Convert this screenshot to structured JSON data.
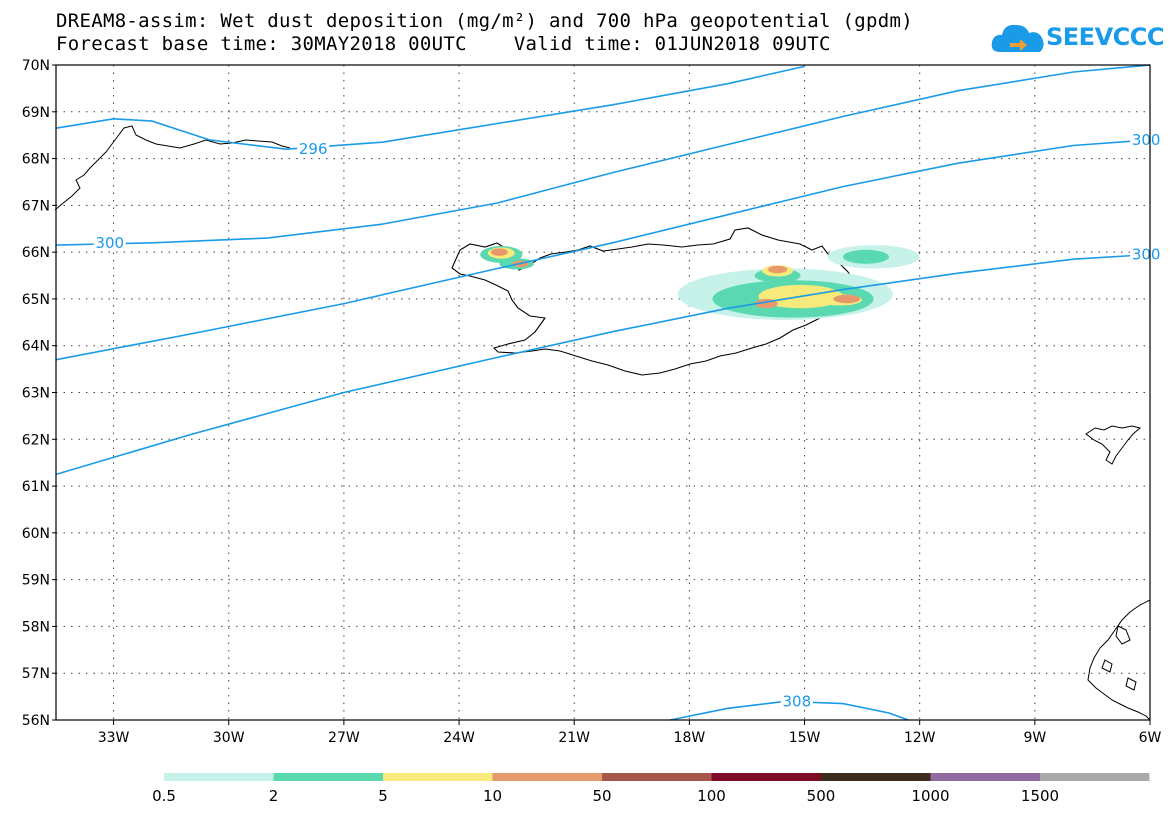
{
  "title_line1": "DREAM8-assim: Wet dust deposition (mg/m²) and 700 hPa geopotential (gpdm)",
  "title_line2": "Forecast base time: 30MAY2018 00UTC    Valid time: 01JUN2018 09UTC",
  "logo_text": "SEEVCCC",
  "map": {
    "lon_range": [
      -34.5,
      -6
    ],
    "lat_range": [
      56,
      70
    ],
    "lon_ticks": [
      {
        "value": -33,
        "label": "33W"
      },
      {
        "value": -30,
        "label": "30W"
      },
      {
        "value": -27,
        "label": "27W"
      },
      {
        "value": -24,
        "label": "24W"
      },
      {
        "value": -21,
        "label": "21W"
      },
      {
        "value": -18,
        "label": "18W"
      },
      {
        "value": -15,
        "label": "15W"
      },
      {
        "value": -12,
        "label": "12W"
      },
      {
        "value": -9,
        "label": "9W"
      },
      {
        "value": -6,
        "label": "6W"
      }
    ],
    "lat_ticks": [
      {
        "value": 70,
        "label": "70N"
      },
      {
        "value": 69,
        "label": "69N"
      },
      {
        "value": 68,
        "label": "68N"
      },
      {
        "value": 67,
        "label": "67N"
      },
      {
        "value": 66,
        "label": "66N"
      },
      {
        "value": 65,
        "label": "65N"
      },
      {
        "value": 64,
        "label": "64N"
      },
      {
        "value": 63,
        "label": "63N"
      },
      {
        "value": 62,
        "label": "62N"
      },
      {
        "value": 61,
        "label": "61N"
      },
      {
        "value": 60,
        "label": "60N"
      },
      {
        "value": 59,
        "label": "59N"
      },
      {
        "value": 58,
        "label": "58N"
      },
      {
        "value": 57,
        "label": "57N"
      },
      {
        "value": 56,
        "label": "56N"
      }
    ],
    "contour_color": "#1a9be8",
    "contours": [
      {
        "label": "296",
        "label_at": [
          -27.8,
          68.2
        ],
        "points": [
          [
            -34.5,
            68.65
          ],
          [
            -33,
            68.85
          ],
          [
            -32,
            68.8
          ],
          [
            -30.5,
            68.4
          ],
          [
            -28.5,
            68.2
          ],
          [
            -26,
            68.35
          ],
          [
            -23,
            68.75
          ],
          [
            -20,
            69.15
          ],
          [
            -17,
            69.6
          ],
          [
            -15,
            69.97
          ]
        ]
      },
      {
        "label": "300",
        "label_at": [
          -33.1,
          66.2
        ],
        "points": [
          [
            -34.5,
            66.15
          ],
          [
            -32,
            66.2
          ],
          [
            -29,
            66.3
          ],
          [
            -26,
            66.6
          ],
          [
            -23,
            67.05
          ],
          [
            -20,
            67.7
          ],
          [
            -17,
            68.3
          ],
          [
            -14,
            68.9
          ],
          [
            -11,
            69.45
          ],
          [
            -8,
            69.85
          ],
          [
            -6,
            70
          ]
        ]
      },
      {
        "label": "300",
        "label_at": [
          -6.1,
          68.4
        ],
        "points": [
          [
            -34.5,
            63.7
          ],
          [
            -31,
            64.25
          ],
          [
            -27,
            64.9
          ],
          [
            -23,
            65.65
          ],
          [
            -20,
            66.2
          ],
          [
            -17,
            66.8
          ],
          [
            -14,
            67.4
          ],
          [
            -11,
            67.9
          ],
          [
            -8,
            68.28
          ],
          [
            -6,
            68.4
          ]
        ]
      },
      {
        "label": "300",
        "label_at": [
          -6.1,
          65.95
        ],
        "points": [
          [
            -34.5,
            61.25
          ],
          [
            -31,
            62.1
          ],
          [
            -27,
            63.0
          ],
          [
            -23,
            63.75
          ],
          [
            -20,
            64.3
          ],
          [
            -17,
            64.8
          ],
          [
            -14,
            65.2
          ],
          [
            -11,
            65.55
          ],
          [
            -8,
            65.85
          ],
          [
            -6,
            65.95
          ]
        ]
      },
      {
        "label": "308",
        "label_at": [
          -15.2,
          56.4
        ],
        "points": [
          [
            -18.5,
            56.0
          ],
          [
            -17,
            56.25
          ],
          [
            -15.5,
            56.4
          ],
          [
            -14,
            56.35
          ],
          [
            -12.8,
            56.15
          ],
          [
            -12.3,
            56.0
          ]
        ]
      }
    ],
    "legend": {
      "labels": [
        "0.5",
        "2",
        "5",
        "10",
        "50",
        "100",
        "500",
        "1000",
        "1500"
      ],
      "colors": [
        "#c7f2ea",
        "#5ad9b0",
        "#f7e97a",
        "#e8996b",
        "#a8564c",
        "#7d0c27",
        "#3c2b1e",
        "#8e6aa0",
        "#a9a9a9"
      ]
    },
    "deposition": [
      {
        "lon": -13.2,
        "lat": 65.9,
        "rx": 1.2,
        "ry": 0.25,
        "level": 0
      },
      {
        "lon": -15.5,
        "lat": 65.1,
        "rx": 2.8,
        "ry": 0.55,
        "level": 0
      },
      {
        "lon": -15.3,
        "lat": 65.0,
        "rx": 2.1,
        "ry": 0.4,
        "level": 1
      },
      {
        "lon": -13.4,
        "lat": 65.9,
        "rx": 0.6,
        "ry": 0.15,
        "level": 1
      },
      {
        "lon": -15.7,
        "lat": 65.5,
        "rx": 0.6,
        "ry": 0.15,
        "level": 1
      },
      {
        "lon": -15.1,
        "lat": 65.05,
        "rx": 1.1,
        "ry": 0.25,
        "level": 2
      },
      {
        "lon": -15.7,
        "lat": 65.6,
        "rx": 0.4,
        "ry": 0.12,
        "level": 2
      },
      {
        "lon": -14.1,
        "lat": 64.98,
        "rx": 0.6,
        "ry": 0.12,
        "level": 2
      },
      {
        "lon": -16.0,
        "lat": 64.9,
        "rx": 0.3,
        "ry": 0.1,
        "level": 3
      },
      {
        "lon": -15.7,
        "lat": 65.63,
        "rx": 0.25,
        "ry": 0.08,
        "level": 3
      },
      {
        "lon": -13.9,
        "lat": 65.0,
        "rx": 0.35,
        "ry": 0.09,
        "level": 3
      },
      {
        "lon": -22.9,
        "lat": 65.95,
        "rx": 0.55,
        "ry": 0.18,
        "level": 1
      },
      {
        "lon": -22.5,
        "lat": 65.75,
        "rx": 0.45,
        "ry": 0.12,
        "level": 1
      },
      {
        "lon": -22.9,
        "lat": 65.98,
        "rx": 0.35,
        "ry": 0.12,
        "level": 2
      },
      {
        "lon": -22.95,
        "lat": 66.0,
        "rx": 0.22,
        "ry": 0.08,
        "level": 3
      },
      {
        "lon": -22.4,
        "lat": 65.75,
        "rx": 0.22,
        "ry": 0.07,
        "level": 3
      }
    ]
  }
}
